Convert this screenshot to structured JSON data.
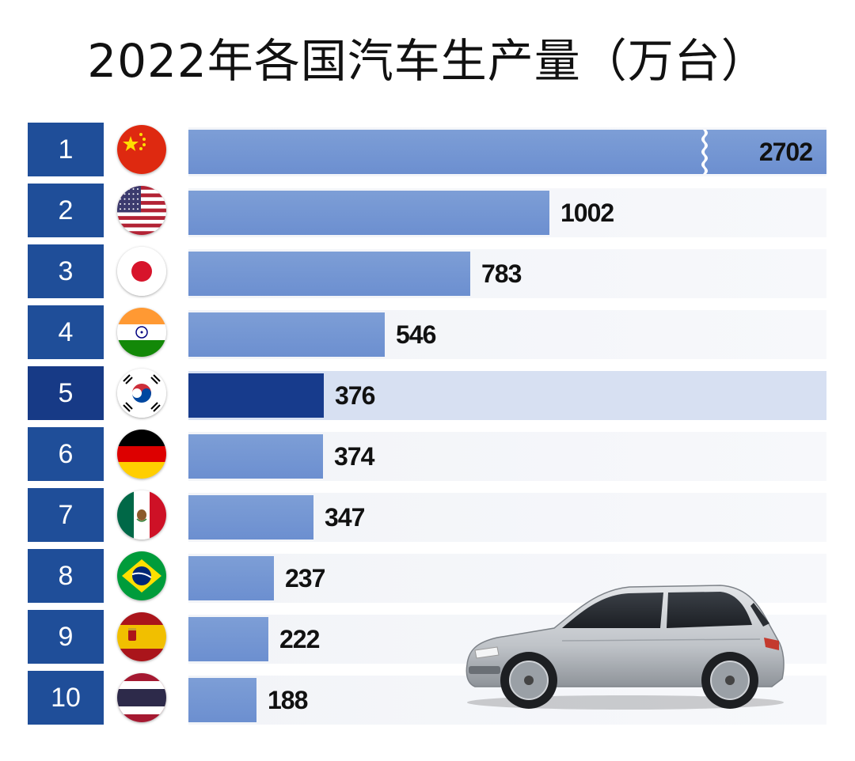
{
  "title": "2022年各国汽车生产量（万台）",
  "colors": {
    "rank_box": "#1f4e99",
    "bar": "#6c8fd0",
    "bar_highlight": "#173b8c",
    "row_highlight": "#d7e0f2"
  },
  "chart_data": {
    "type": "bar",
    "orientation": "horizontal",
    "title": "2022年各国汽车生产量（万台）",
    "categories": [
      "1",
      "2",
      "3",
      "4",
      "5",
      "6",
      "7",
      "8",
      "9",
      "10"
    ],
    "flags": [
      "china-flag",
      "usa-flag",
      "japan-flag",
      "india-flag",
      "south-korea-flag",
      "germany-flag",
      "mexico-flag",
      "brazil-flag",
      "spain-flag",
      "thailand-flag"
    ],
    "values": [
      2702,
      1002,
      783,
      546,
      376,
      374,
      347,
      237,
      222,
      188
    ],
    "highlight_index": 4,
    "first_bar_truncated": true,
    "xlim": [
      0,
      2702
    ],
    "grid": false,
    "legend": "none"
  },
  "decoration": {
    "image": "silver-hatchback-car-icon"
  }
}
